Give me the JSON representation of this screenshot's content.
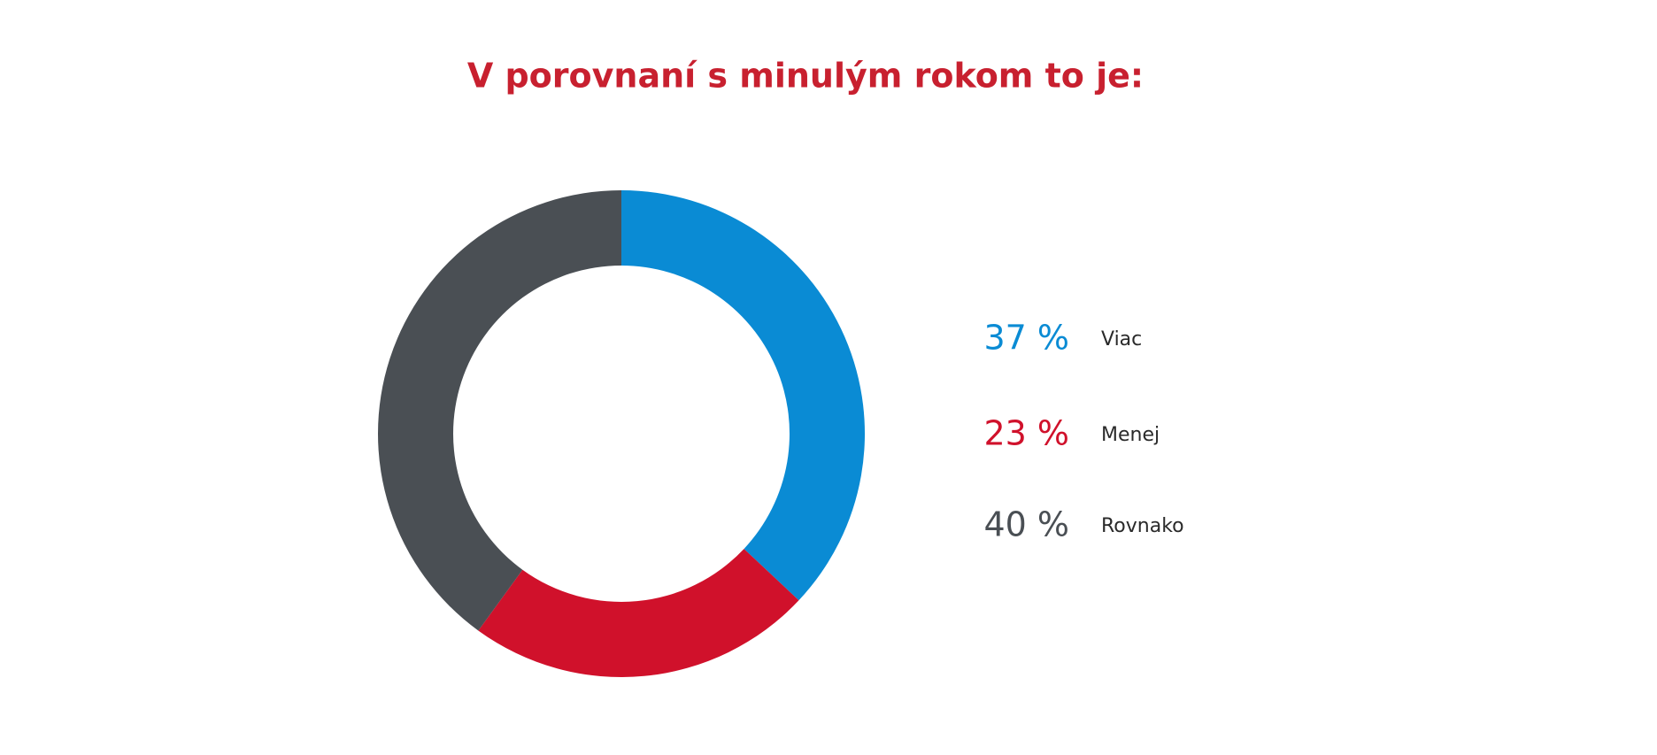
{
  "chart_data": {
    "type": "donut",
    "title": "V porovnaní s minulým rokom to je:",
    "categories": [
      "Viac",
      "Menej",
      "Rovnako"
    ],
    "values": [
      37,
      23,
      40
    ],
    "value_labels": [
      "37 %",
      "23 %",
      "40 %"
    ],
    "colors": [
      "#0a8bd4",
      "#d0112b",
      "#4a4f54"
    ]
  }
}
